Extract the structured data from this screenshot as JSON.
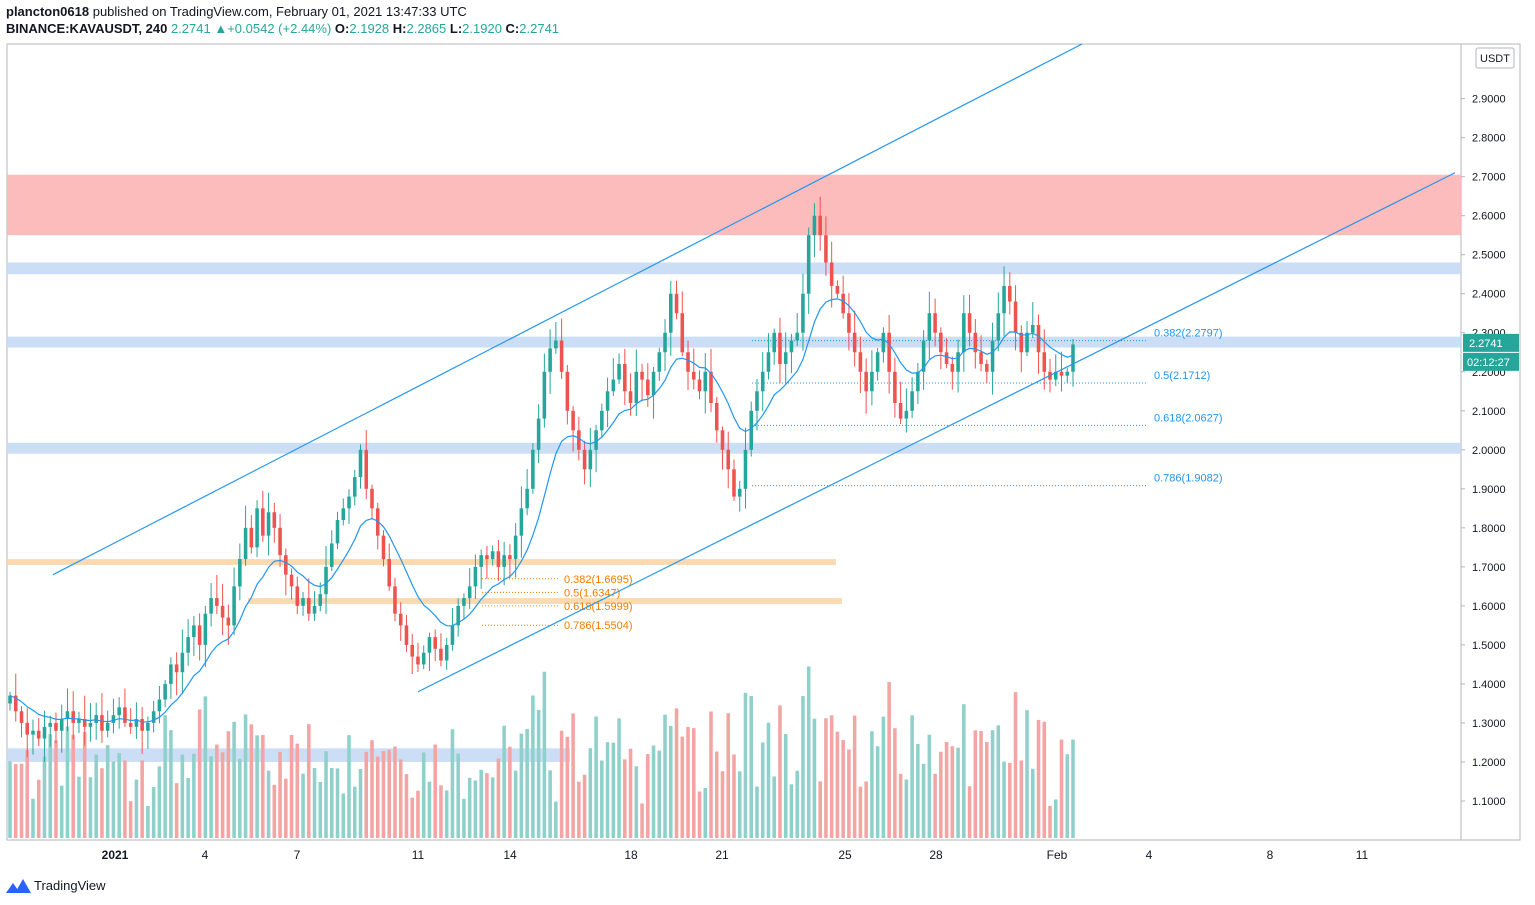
{
  "header": {
    "author": "plancton0618",
    "published_text": "published on TradingView.com, February 01, 2021 13:47:33 UTC",
    "symbol": "BINANCE:KAVAUSDT, 240",
    "last": "2.2741",
    "change_arrow": "▲",
    "change": "+0.0542 (+2.44%)",
    "o_label": "O:",
    "o_value": "2.1928",
    "h_label": "H:",
    "h_value": "2.2865",
    "l_label": "L:",
    "l_value": "2.1920",
    "c_label": "C:",
    "c_value": "2.2741"
  },
  "footer": {
    "brand": "TradingView"
  },
  "colors": {
    "up": "#26a69a",
    "down": "#ef5350",
    "vol_up": "#8fd1ca",
    "vol_down": "#f3a5a3",
    "channel": "#2196f3",
    "resistance_zone": "#fcb5b5",
    "support_zone": "#c6d9f5",
    "orange_zone": "#fbd5a8",
    "fib_blue": "#2196f3",
    "fib_orange": "#f57c00"
  },
  "chart_data": {
    "type": "candlestick",
    "title": "BINANCE:KAVAUSDT, 240",
    "currency": "USDT",
    "ylim": [
      1.0,
      3.04
    ],
    "y_ticks": [
      "2.9000",
      "2.8000",
      "2.7000",
      "2.6000",
      "2.5000",
      "2.4000",
      "2.3000",
      "2.2000",
      "2.1000",
      "2.0000",
      "1.9000",
      "1.8000",
      "1.7000",
      "1.6000",
      "1.5000",
      "1.4000",
      "1.3000",
      "1.2000",
      "1.1000"
    ],
    "x_ticks": [
      "2021",
      "4",
      "7",
      "11",
      "14",
      "18",
      "21",
      "25",
      "28",
      "Feb",
      "4",
      "8",
      "11"
    ],
    "last_price": "2.2741",
    "countdown": "02:12:27",
    "channel_lines": [
      {
        "name": "upper-channel",
        "from": [
          "Dec 29",
          1.68
        ],
        "to": [
          "Feb 2",
          3.04
        ]
      },
      {
        "name": "lower-channel",
        "from": [
          "Jan 11",
          1.38
        ],
        "to": [
          "Feb 13",
          2.71
        ]
      }
    ],
    "zones": [
      {
        "name": "resistance-zone",
        "kind": "resistance",
        "low": 2.55,
        "high": 2.705
      },
      {
        "name": "support-zone-2470",
        "kind": "support",
        "low": 2.45,
        "high": 2.48
      },
      {
        "name": "support-zone-2280",
        "kind": "support",
        "low": 2.262,
        "high": 2.29
      },
      {
        "name": "support-zone-2000",
        "kind": "support",
        "low": 1.99,
        "high": 2.018
      },
      {
        "name": "support-zone-1220",
        "kind": "support",
        "low": 1.2,
        "high": 1.235
      },
      {
        "name": "orange-zone-1710",
        "kind": "orange",
        "low": 1.705,
        "high": 1.72
      },
      {
        "name": "orange-zone-1610",
        "kind": "orange",
        "low": 1.605,
        "high": 1.62
      }
    ],
    "fib_blue": [
      {
        "label": "0.382(2.2797)",
        "value": 2.2797
      },
      {
        "label": "0.5(2.1712)",
        "value": 2.1712
      },
      {
        "label": "0.618(2.0627)",
        "value": 2.0627
      },
      {
        "label": "0.786(1.9082)",
        "value": 1.9082
      }
    ],
    "fib_orange": [
      {
        "label": "0.382(1.6695)",
        "value": 1.6695
      },
      {
        "label": "0.5(1.6347)",
        "value": 1.6347
      },
      {
        "label": "0.618(1.5999)",
        "value": 1.5999
      },
      {
        "label": "0.786(1.5504)",
        "value": 1.5504
      }
    ],
    "price_path": [
      1.37,
      1.33,
      1.3,
      1.27,
      1.28,
      1.26,
      1.29,
      1.3,
      1.28,
      1.31,
      1.33,
      1.3,
      1.31,
      1.29,
      1.3,
      1.32,
      1.28,
      1.3,
      1.32,
      1.34,
      1.3,
      1.29,
      1.31,
      1.28,
      1.3,
      1.33,
      1.36,
      1.4,
      1.45,
      1.43,
      1.48,
      1.52,
      1.55,
      1.5,
      1.58,
      1.62,
      1.6,
      1.57,
      1.55,
      1.65,
      1.72,
      1.8,
      1.75,
      1.85,
      1.78,
      1.84,
      1.8,
      1.73,
      1.68,
      1.65,
      1.6,
      1.62,
      1.58,
      1.6,
      1.63,
      1.7,
      1.76,
      1.82,
      1.85,
      1.88,
      1.93,
      2.0,
      1.9,
      1.85,
      1.78,
      1.72,
      1.65,
      1.58,
      1.55,
      1.5,
      1.47,
      1.45,
      1.48,
      1.52,
      1.49,
      1.46,
      1.5,
      1.55,
      1.6,
      1.62,
      1.65,
      1.7,
      1.73,
      1.72,
      1.74,
      1.7,
      1.73,
      1.72,
      1.78,
      1.85,
      1.9,
      2.0,
      2.08,
      2.2,
      2.26,
      2.28,
      2.2,
      2.1,
      2.05,
      2.0,
      1.95,
      2.0,
      2.05,
      2.1,
      2.15,
      2.18,
      2.22,
      2.15,
      2.12,
      2.2,
      2.18,
      2.14,
      2.2,
      2.25,
      2.3,
      2.4,
      2.35,
      2.25,
      2.2,
      2.18,
      2.15,
      2.2,
      2.12,
      2.05,
      2.0,
      1.95,
      1.88,
      1.9,
      2.0,
      2.1,
      2.15,
      2.2,
      2.25,
      2.3,
      2.22,
      2.25,
      2.28,
      2.3,
      2.4,
      2.55,
      2.6,
      2.55,
      2.48,
      2.42,
      2.4,
      2.35,
      2.3,
      2.25,
      2.2,
      2.15,
      2.2,
      2.25,
      2.3,
      2.2,
      2.12,
      2.08,
      2.1,
      2.15,
      2.2,
      2.28,
      2.35,
      2.3,
      2.25,
      2.22,
      2.2,
      2.25,
      2.35,
      2.3,
      2.25,
      2.22,
      2.2,
      2.28,
      2.35,
      2.42,
      2.38,
      2.3,
      2.25,
      2.3,
      2.32,
      2.25,
      2.2,
      2.18,
      2.2,
      2.19,
      2.2,
      2.27
    ]
  }
}
